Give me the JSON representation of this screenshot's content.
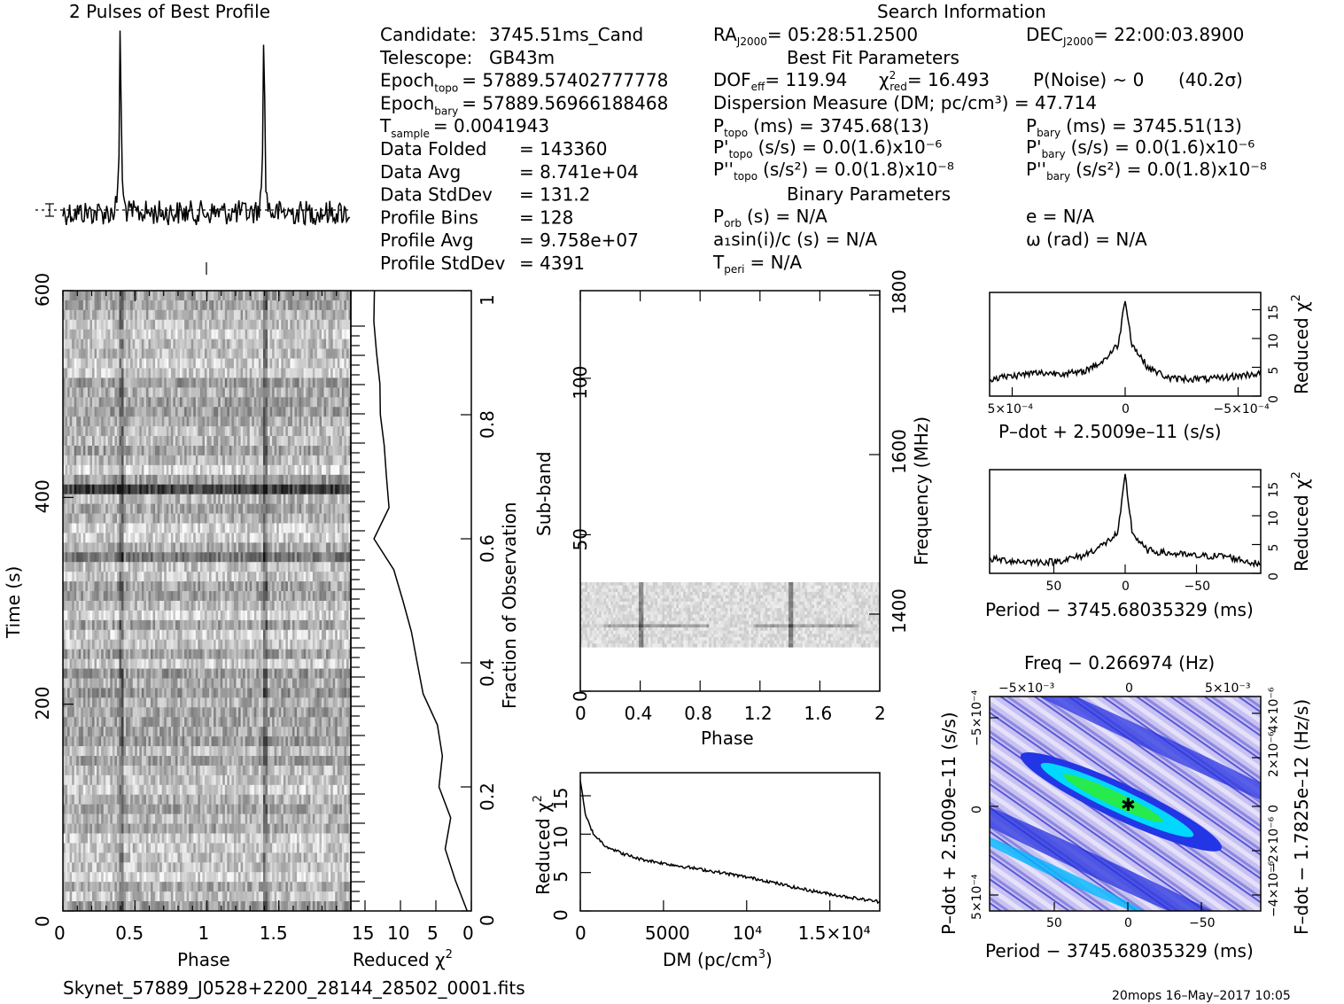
{
  "titles": {
    "profile": "2 Pulses of Best Profile",
    "search": "Search Information",
    "best_fit": "Best Fit Parameters",
    "binary": "Binary Parameters"
  },
  "info_left": [
    {
      "label": "Candidate:",
      "value": "3745.51ms_Cand"
    },
    {
      "label": "Telescope:",
      "value": "GB43m"
    },
    {
      "label": "Epoch",
      "sub": "topo",
      "value": "= 57889.57402777778"
    },
    {
      "label": "Epoch",
      "sub": "bary",
      "value": "= 57889.56966188468"
    },
    {
      "label": "T",
      "sub": "sample",
      "value": "=   0.0041943"
    },
    {
      "label": "Data Folded",
      "value": "=   143360"
    },
    {
      "label": "Data Avg",
      "value": "=   8.741e+04"
    },
    {
      "label": "Data StdDev",
      "value": "=   131.2"
    },
    {
      "label": "Profile Bins",
      "value": "=   128"
    },
    {
      "label": "Profile Avg",
      "value": "=   9.758e+07"
    },
    {
      "label": "Profile StdDev",
      "value": "=   4391"
    }
  ],
  "info_right": {
    "ra": "= 05:28:51.2500",
    "dec": "= 22:00:03.8900",
    "dof": "= 119.94",
    "chi2": "= 16.493",
    "pnoise": "P(Noise) ~ 0",
    "sigma": "(40.2σ)",
    "dm": "Dispersion Measure (DM; pc/cm³) = 47.714",
    "p_topo": "(ms) =  3745.68(13)",
    "p_bary": "(ms) =  3745.51(13)",
    "pd_topo": "(s/s) = 0.0(1.6)x10⁻⁶",
    "pd_bary": "(s/s) = 0.0(1.6)x10⁻⁶",
    "pdd_topo": "(s/s²) = 0.0(1.8)x10⁻⁸",
    "pdd_bary": "(s/s²) = 0.0(1.8)x10⁻⁸",
    "porb": "(s) = N/A",
    "e": "e = N/A",
    "a1": "a₁sin(i)/c (s) = N/A",
    "omega": "ω (rad) = N/A",
    "tperi": "= N/A"
  },
  "footer": {
    "filename": "Skynet_57889_J0528+2200_28144_28502_0001.fits",
    "stamp": "20mops 16–May–2017 10:05"
  },
  "chart_data": [
    {
      "type": "line",
      "title": "2 Pulses of Best Profile",
      "x": [
        0,
        0.4,
        1,
        1.4,
        2
      ],
      "xlim": [
        0,
        2
      ],
      "peaks_phase": [
        0.4,
        1.4
      ],
      "note_values": "baseline with two sharp pulses"
    },
    {
      "type": "heatmap",
      "xlabel": "Phase",
      "ylabel": "Time (s)",
      "xlim": [
        0,
        2
      ],
      "ylim": [
        0,
        600
      ],
      "xticks": [
        "0",
        "0.5",
        "1",
        "1.5"
      ],
      "yticks": [
        "0",
        "200",
        "400",
        "600"
      ]
    },
    {
      "type": "line",
      "xlabel": "Reduced χ²",
      "ylabel": "Fraction of Observation",
      "xlim": [
        17,
        0
      ],
      "ylim": [
        0,
        1
      ],
      "xticks": [
        "15",
        "10",
        "5",
        "0"
      ],
      "yticks": [
        "0",
        "0.2",
        "0.4",
        "0.6",
        "0.8",
        "1"
      ],
      "fraction": [
        0,
        0.05,
        0.1,
        0.15,
        0.2,
        0.25,
        0.3,
        0.35,
        0.4,
        0.45,
        0.5,
        0.55,
        0.6,
        0.65,
        0.7,
        0.75,
        0.8,
        0.85,
        0.9,
        0.95,
        1.0
      ],
      "chi2": [
        0.5,
        2.5,
        3.5,
        3.2,
        4.5,
        3.8,
        5,
        6.5,
        7.5,
        8.5,
        9.5,
        11,
        13.5,
        11.5,
        11.8,
        12.5,
        12.8,
        13.2,
        13.5,
        13.8,
        13.8
      ]
    },
    {
      "type": "heatmap",
      "xlabel": "Phase",
      "ylabel": "Sub-band",
      "ylabel_right": "Frequency (MHz)",
      "xlim": [
        0,
        2
      ],
      "ylim": [
        0,
        128
      ],
      "xticks": [
        "0",
        "0.4",
        "0.8",
        "1.2",
        "1.6",
        "2"
      ],
      "yticks": [
        "0",
        "50",
        "100"
      ],
      "yticks_right": [
        "1400",
        "1600",
        "1800"
      ]
    },
    {
      "type": "line",
      "xlabel": "DM (pc/cm³)",
      "ylabel": "Reduced χ²",
      "xlim": [
        0,
        18000
      ],
      "ylim": [
        0,
        18
      ],
      "xticks": [
        "0",
        "5000",
        "10⁴",
        "1.5×10⁴"
      ],
      "yticks": [
        "0",
        "5",
        "10",
        "15"
      ],
      "x": [
        0,
        300,
        800,
        1500,
        2500,
        3500,
        5000,
        7000,
        9000,
        11000,
        13000,
        15000,
        17000,
        18000
      ],
      "y": [
        17,
        12.5,
        10,
        8.5,
        7.5,
        6.8,
        6.2,
        5.5,
        4.8,
        4.0,
        3.0,
        2.2,
        1.5,
        1.2
      ]
    },
    {
      "type": "line",
      "xlabel": "P–dot + 2.5009e–11 (s/s)",
      "ylabel": "Reduced χ²",
      "xlim": [
        0.0006,
        -0.0006
      ],
      "ylim": [
        0,
        18
      ],
      "xticks": [
        "5×10⁻⁴",
        "0",
        "−5×10⁻⁴"
      ],
      "yticks": [
        "0",
        "5",
        "10",
        "15"
      ],
      "x": [
        0.0006,
        0.0004,
        0.0002,
        0.0001,
        3e-05,
        0,
        -3e-05,
        -0.0001,
        -0.0002,
        -0.0004,
        -0.0006
      ],
      "y": [
        3,
        4,
        4,
        6,
        9,
        17,
        9,
        5,
        3,
        3,
        4
      ]
    },
    {
      "type": "line",
      "xlabel": "Period − 3745.68035329 (ms)",
      "ylabel": "Reduced χ²",
      "xlim": [
        95,
        -95
      ],
      "ylim": [
        0,
        18
      ],
      "xticks": [
        "50",
        "0",
        "−50"
      ],
      "yticks": [
        "0",
        "5",
        "10",
        "15"
      ],
      "x": [
        95,
        70,
        50,
        30,
        15,
        5,
        0,
        -5,
        -15,
        -30,
        -50,
        -70,
        -95
      ],
      "y": [
        2.5,
        2,
        2,
        3,
        5,
        7,
        17,
        7,
        4,
        3.5,
        3,
        3,
        1.5
      ]
    },
    {
      "type": "heatmap",
      "title": "Freq − 0.266974 (Hz)",
      "xlabel": "Period − 3745.68035329 (ms)",
      "ylabel": "P–dot + 2.5009e–11 (s/s)",
      "ylabel_right": "F–dot − 1.7825e–12 (Hz/s)",
      "xticks": [
        "50",
        "0",
        "−50"
      ],
      "yticks": [
        "−5×10⁻⁴",
        "0",
        "5×10⁻⁴"
      ],
      "top_ticks": [
        "−5×10⁻³",
        "0",
        "5×10⁻³"
      ],
      "right_ticks": [
        "4×10⁻⁶",
        "2×10⁻⁶",
        "0",
        "−2×10⁻⁶",
        "−4×10⁻⁶"
      ]
    }
  ],
  "colors": {
    "ink": "#000000",
    "contour_cool": "#1a2fd8",
    "contour_mid": "#00c8ff",
    "contour_hot": "#22e64a",
    "contour_bg": "#c9c6f0"
  }
}
